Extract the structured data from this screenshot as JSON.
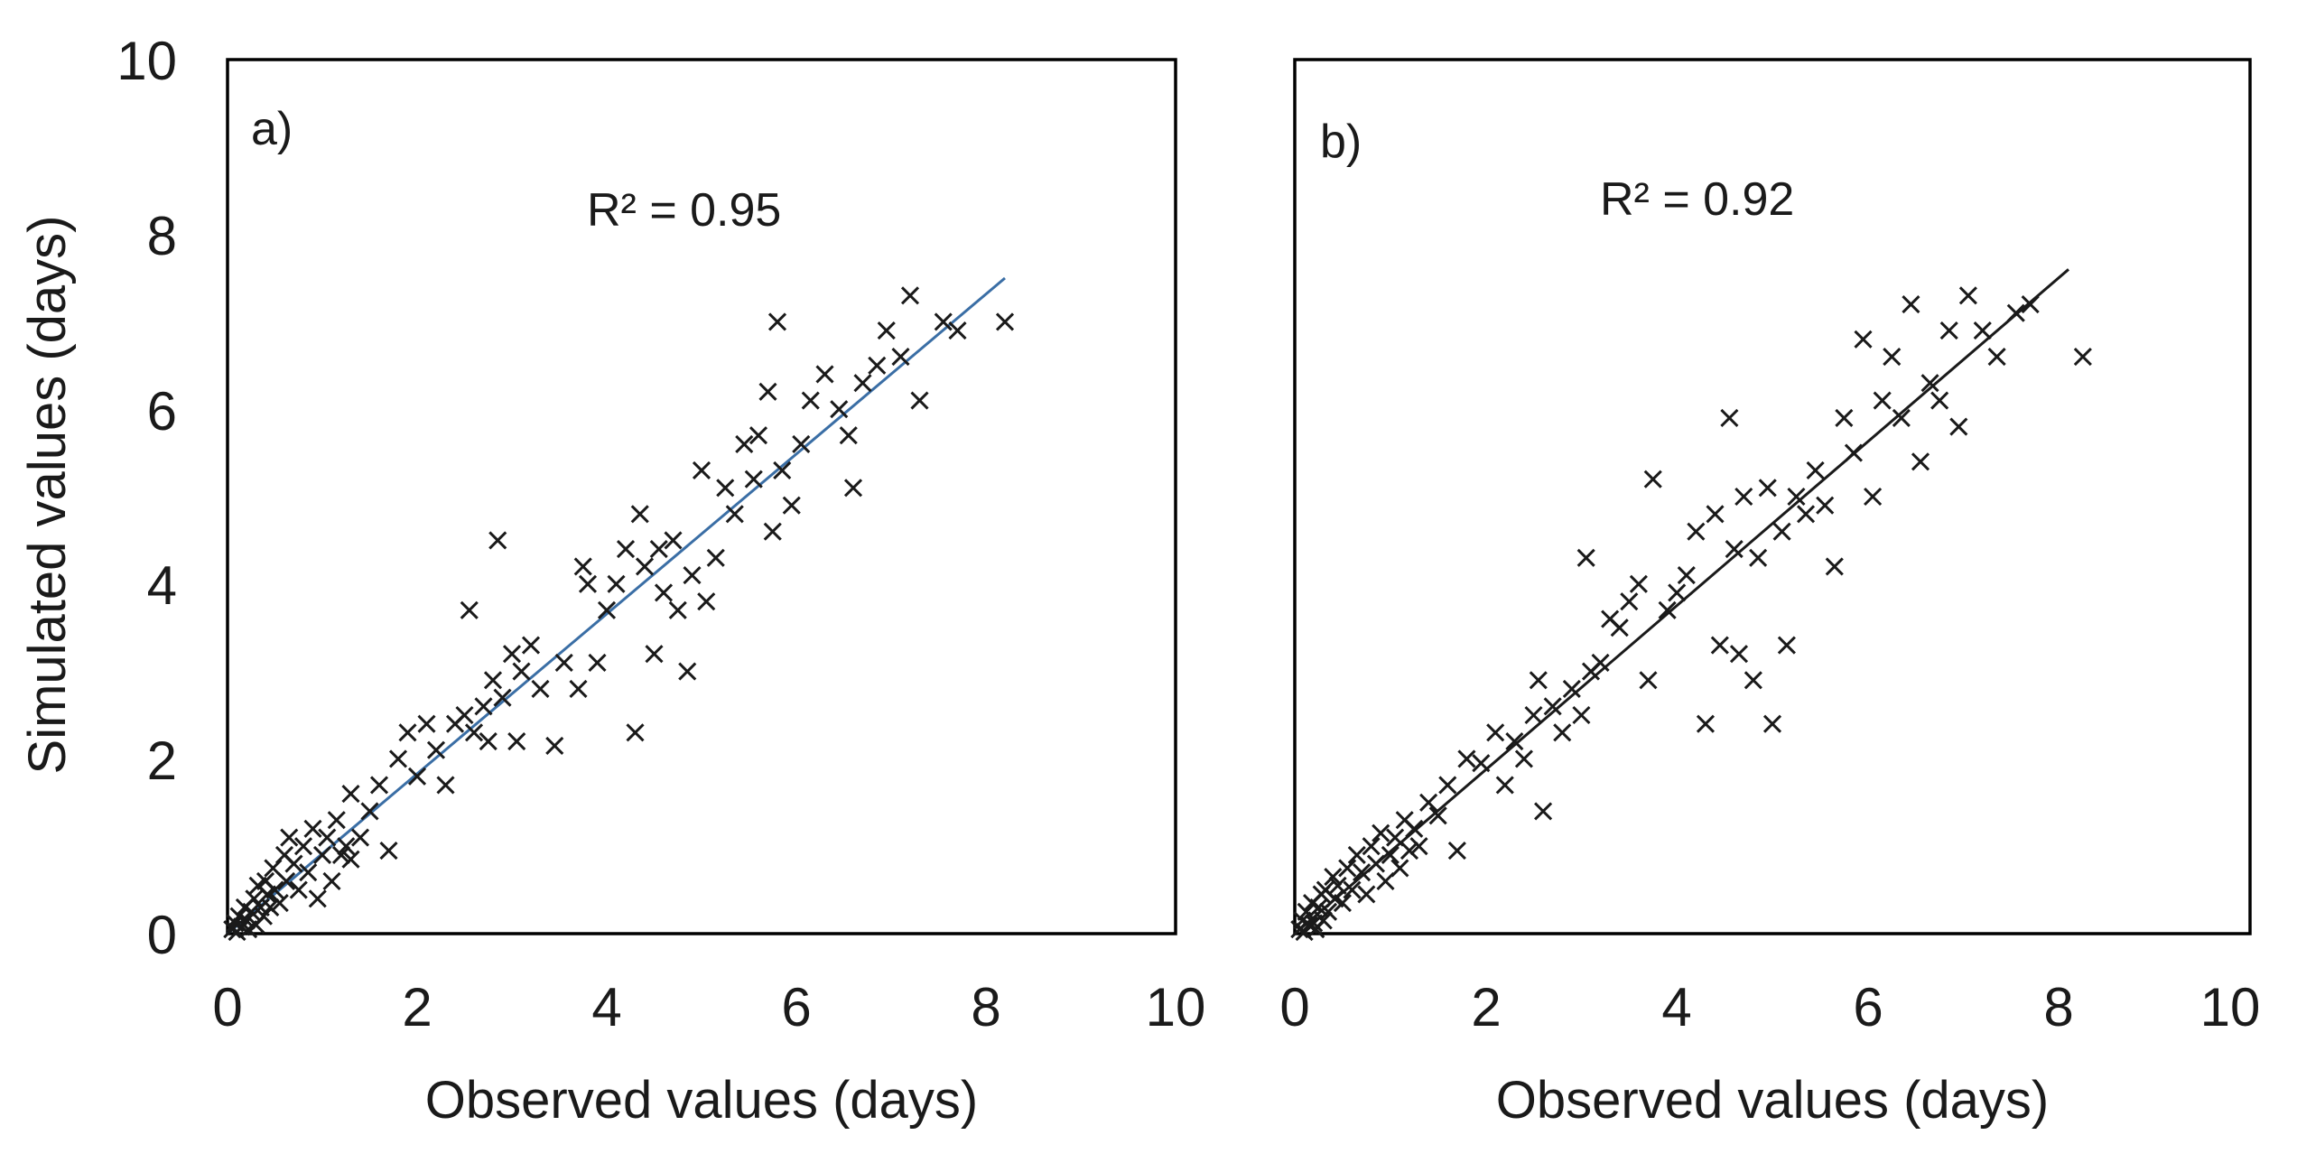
{
  "chart_data": [
    {
      "type": "scatter",
      "panel_label": "a)",
      "annotation": "R² = 0.95",
      "xlabel": "Observed values (days)",
      "ylabel": "Simulated values (days)",
      "xlim": [
        0,
        10
      ],
      "ylim": [
        0,
        10
      ],
      "xticks": [
        "0",
        "2",
        "4",
        "6",
        "8",
        "10"
      ],
      "yticks": [
        "0",
        "2",
        "4",
        "6",
        "8",
        "10"
      ],
      "grid": false,
      "marker": "x",
      "colors": {
        "points": "#1a1a1a",
        "trendline": "#3a6ea5"
      },
      "trendline": {
        "x": [
          0,
          8.2
        ],
        "y": [
          0,
          7.5
        ]
      },
      "points": [
        [
          0.05,
          0.05
        ],
        [
          0.08,
          0.12
        ],
        [
          0.1,
          0.02
        ],
        [
          0.12,
          0.2
        ],
        [
          0.15,
          0.08
        ],
        [
          0.18,
          0.3
        ],
        [
          0.2,
          0.15
        ],
        [
          0.22,
          0.05
        ],
        [
          0.25,
          0.25
        ],
        [
          0.28,
          0.4
        ],
        [
          0.3,
          0.1
        ],
        [
          0.32,
          0.55
        ],
        [
          0.35,
          0.3
        ],
        [
          0.38,
          0.2
        ],
        [
          0.4,
          0.6
        ],
        [
          0.42,
          0.45
        ],
        [
          0.45,
          0.3
        ],
        [
          0.48,
          0.75
        ],
        [
          0.5,
          0.5
        ],
        [
          0.55,
          0.35
        ],
        [
          0.6,
          0.9
        ],
        [
          0.62,
          0.6
        ],
        [
          0.65,
          1.1
        ],
        [
          0.7,
          0.8
        ],
        [
          0.75,
          0.5
        ],
        [
          0.8,
          1.0
        ],
        [
          0.85,
          0.7
        ],
        [
          0.9,
          1.2
        ],
        [
          0.95,
          0.4
        ],
        [
          1.0,
          0.9
        ],
        [
          1.05,
          1.1
        ],
        [
          1.1,
          0.6
        ],
        [
          1.15,
          1.3
        ],
        [
          1.2,
          0.9
        ],
        [
          1.25,
          1.0
        ],
        [
          1.3,
          0.85
        ],
        [
          1.3,
          1.6
        ],
        [
          1.4,
          1.1
        ],
        [
          1.5,
          1.4
        ],
        [
          1.6,
          1.7
        ],
        [
          1.7,
          0.95
        ],
        [
          1.8,
          2.0
        ],
        [
          1.9,
          2.3
        ],
        [
          2.0,
          1.8
        ],
        [
          2.1,
          2.4
        ],
        [
          2.2,
          2.1
        ],
        [
          2.3,
          1.7
        ],
        [
          2.4,
          2.4
        ],
        [
          2.5,
          2.5
        ],
        [
          2.55,
          3.7
        ],
        [
          2.6,
          2.3
        ],
        [
          2.7,
          2.6
        ],
        [
          2.75,
          2.2
        ],
        [
          2.8,
          2.9
        ],
        [
          2.85,
          4.5
        ],
        [
          2.9,
          2.7
        ],
        [
          3.0,
          3.2
        ],
        [
          3.05,
          2.2
        ],
        [
          3.1,
          3.0
        ],
        [
          3.2,
          3.3
        ],
        [
          3.3,
          2.8
        ],
        [
          3.45,
          2.15
        ],
        [
          3.55,
          3.1
        ],
        [
          3.7,
          2.8
        ],
        [
          3.75,
          4.2
        ],
        [
          3.8,
          4.0
        ],
        [
          3.9,
          3.1
        ],
        [
          4.0,
          3.7
        ],
        [
          4.1,
          4.0
        ],
        [
          4.2,
          4.4
        ],
        [
          4.3,
          2.3
        ],
        [
          4.35,
          4.8
        ],
        [
          4.4,
          4.2
        ],
        [
          4.5,
          3.2
        ],
        [
          4.55,
          4.4
        ],
        [
          4.6,
          3.9
        ],
        [
          4.7,
          4.5
        ],
        [
          4.75,
          3.7
        ],
        [
          4.85,
          3.0
        ],
        [
          4.9,
          4.1
        ],
        [
          5.0,
          5.3
        ],
        [
          5.05,
          3.8
        ],
        [
          5.15,
          4.3
        ],
        [
          5.25,
          5.1
        ],
        [
          5.35,
          4.8
        ],
        [
          5.45,
          5.6
        ],
        [
          5.55,
          5.2
        ],
        [
          5.6,
          5.7
        ],
        [
          5.7,
          6.2
        ],
        [
          5.75,
          4.6
        ],
        [
          5.8,
          7.0
        ],
        [
          5.85,
          5.3
        ],
        [
          5.95,
          4.9
        ],
        [
          6.05,
          5.6
        ],
        [
          6.15,
          6.1
        ],
        [
          6.3,
          6.4
        ],
        [
          6.45,
          6.0
        ],
        [
          6.55,
          5.7
        ],
        [
          6.6,
          5.1
        ],
        [
          6.7,
          6.3
        ],
        [
          6.85,
          6.5
        ],
        [
          6.95,
          6.9
        ],
        [
          7.1,
          6.6
        ],
        [
          7.2,
          7.3
        ],
        [
          7.3,
          6.1
        ],
        [
          7.55,
          7.0
        ],
        [
          7.7,
          6.9
        ],
        [
          8.2,
          7.0
        ]
      ]
    },
    {
      "type": "scatter",
      "panel_label": "b)",
      "annotation": "R² = 0.92",
      "xlabel": "Observed values (days)",
      "ylabel": "",
      "xlim": [
        0,
        10
      ],
      "ylim": [
        0,
        10
      ],
      "xticks": [
        "0",
        "2",
        "4",
        "6",
        "8",
        "10"
      ],
      "yticks": [],
      "grid": false,
      "marker": "x",
      "colors": {
        "points": "#1a1a1a",
        "trendline": "#1a1a1a"
      },
      "trendline": {
        "x": [
          0,
          8.1
        ],
        "y": [
          0,
          7.6
        ]
      },
      "points": [
        [
          0.05,
          0.05
        ],
        [
          0.08,
          0.15
        ],
        [
          0.1,
          0.02
        ],
        [
          0.12,
          0.25
        ],
        [
          0.15,
          0.1
        ],
        [
          0.18,
          0.35
        ],
        [
          0.2,
          0.12
        ],
        [
          0.22,
          0.05
        ],
        [
          0.25,
          0.3
        ],
        [
          0.28,
          0.45
        ],
        [
          0.3,
          0.15
        ],
        [
          0.32,
          0.5
        ],
        [
          0.35,
          0.25
        ],
        [
          0.4,
          0.65
        ],
        [
          0.42,
          0.4
        ],
        [
          0.45,
          0.55
        ],
        [
          0.5,
          0.35
        ],
        [
          0.55,
          0.75
        ],
        [
          0.6,
          0.5
        ],
        [
          0.65,
          0.9
        ],
        [
          0.7,
          0.7
        ],
        [
          0.75,
          0.45
        ],
        [
          0.8,
          1.0
        ],
        [
          0.85,
          0.8
        ],
        [
          0.9,
          1.15
        ],
        [
          0.95,
          0.6
        ],
        [
          1.0,
          0.9
        ],
        [
          1.05,
          1.1
        ],
        [
          1.1,
          0.75
        ],
        [
          1.15,
          1.3
        ],
        [
          1.2,
          0.95
        ],
        [
          1.25,
          1.2
        ],
        [
          1.3,
          1.0
        ],
        [
          1.4,
          1.5
        ],
        [
          1.5,
          1.35
        ],
        [
          1.6,
          1.7
        ],
        [
          1.7,
          0.95
        ],
        [
          1.8,
          2.0
        ],
        [
          1.95,
          1.95
        ],
        [
          2.1,
          2.3
        ],
        [
          2.2,
          1.7
        ],
        [
          2.3,
          2.2
        ],
        [
          2.4,
          2.0
        ],
        [
          2.5,
          2.5
        ],
        [
          2.55,
          2.9
        ],
        [
          2.6,
          1.4
        ],
        [
          2.7,
          2.6
        ],
        [
          2.8,
          2.3
        ],
        [
          2.9,
          2.8
        ],
        [
          3.0,
          2.5
        ],
        [
          3.05,
          4.3
        ],
        [
          3.1,
          3.0
        ],
        [
          3.2,
          3.1
        ],
        [
          3.3,
          3.6
        ],
        [
          3.4,
          3.5
        ],
        [
          3.5,
          3.8
        ],
        [
          3.6,
          4.0
        ],
        [
          3.7,
          2.9
        ],
        [
          3.75,
          5.2
        ],
        [
          3.9,
          3.7
        ],
        [
          4.0,
          3.9
        ],
        [
          4.1,
          4.1
        ],
        [
          4.2,
          4.6
        ],
        [
          4.3,
          2.4
        ],
        [
          4.4,
          4.8
        ],
        [
          4.45,
          3.3
        ],
        [
          4.55,
          5.9
        ],
        [
          4.6,
          4.4
        ],
        [
          4.65,
          3.2
        ],
        [
          4.7,
          5.0
        ],
        [
          4.8,
          2.9
        ],
        [
          4.85,
          4.3
        ],
        [
          4.95,
          5.1
        ],
        [
          5.0,
          2.4
        ],
        [
          5.1,
          4.6
        ],
        [
          5.15,
          3.3
        ],
        [
          5.25,
          5.0
        ],
        [
          5.35,
          4.8
        ],
        [
          5.45,
          5.3
        ],
        [
          5.55,
          4.9
        ],
        [
          5.65,
          4.2
        ],
        [
          5.75,
          5.9
        ],
        [
          5.85,
          5.5
        ],
        [
          5.95,
          6.8
        ],
        [
          6.05,
          5.0
        ],
        [
          6.15,
          6.1
        ],
        [
          6.25,
          6.6
        ],
        [
          6.35,
          5.9
        ],
        [
          6.45,
          7.2
        ],
        [
          6.55,
          5.4
        ],
        [
          6.65,
          6.3
        ],
        [
          6.75,
          6.1
        ],
        [
          6.85,
          6.9
        ],
        [
          6.95,
          5.8
        ],
        [
          7.05,
          7.3
        ],
        [
          7.2,
          6.9
        ],
        [
          7.35,
          6.6
        ],
        [
          7.55,
          7.1
        ],
        [
          7.7,
          7.2
        ],
        [
          8.25,
          6.6
        ]
      ]
    }
  ]
}
